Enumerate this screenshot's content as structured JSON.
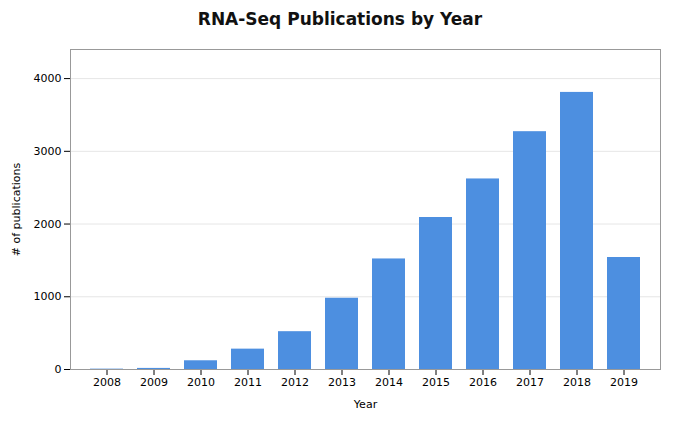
{
  "chart_data": {
    "type": "bar",
    "title": "RNA-Seq Publications by Year",
    "xlabel": "Year",
    "ylabel": "# of publications",
    "categories": [
      "2008",
      "2009",
      "2010",
      "2011",
      "2012",
      "2013",
      "2014",
      "2015",
      "2016",
      "2017",
      "2018",
      "2019"
    ],
    "values": [
      5,
      15,
      120,
      280,
      520,
      980,
      1520,
      2090,
      2620,
      3270,
      3810,
      1540
    ],
    "color": "#4d8fe0",
    "ylim": [
      0,
      4400
    ],
    "yticks": [
      0,
      1000,
      2000,
      3000,
      4000
    ],
    "grid": true
  }
}
